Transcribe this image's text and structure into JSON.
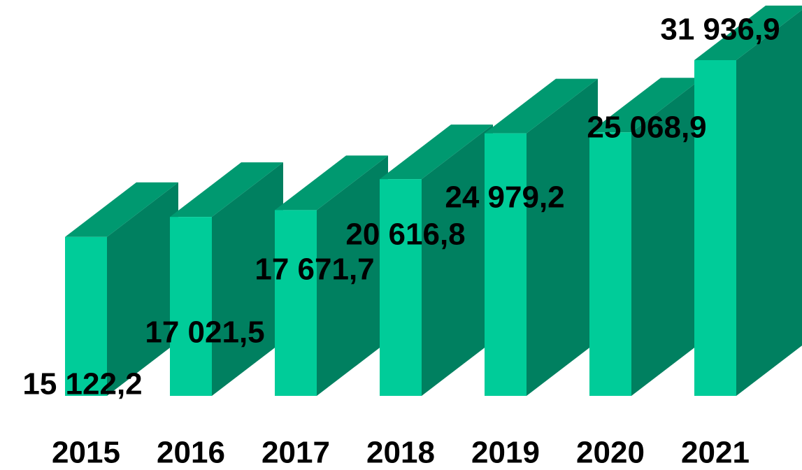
{
  "chart_data": {
    "type": "bar3d",
    "categories": [
      "2015",
      "2016",
      "2017",
      "2018",
      "2019",
      "2020",
      "2021"
    ],
    "values": [
      15122.2,
      17021.5,
      17671.7,
      20616.8,
      24979.2,
      25068.9,
      31936.9
    ],
    "value_labels": [
      "15 122,2",
      "17 021,5",
      "17 671,7",
      "20 616,8",
      "24 979,2",
      "25 068,9",
      "31 936,9"
    ],
    "color": "#00cc99"
  }
}
